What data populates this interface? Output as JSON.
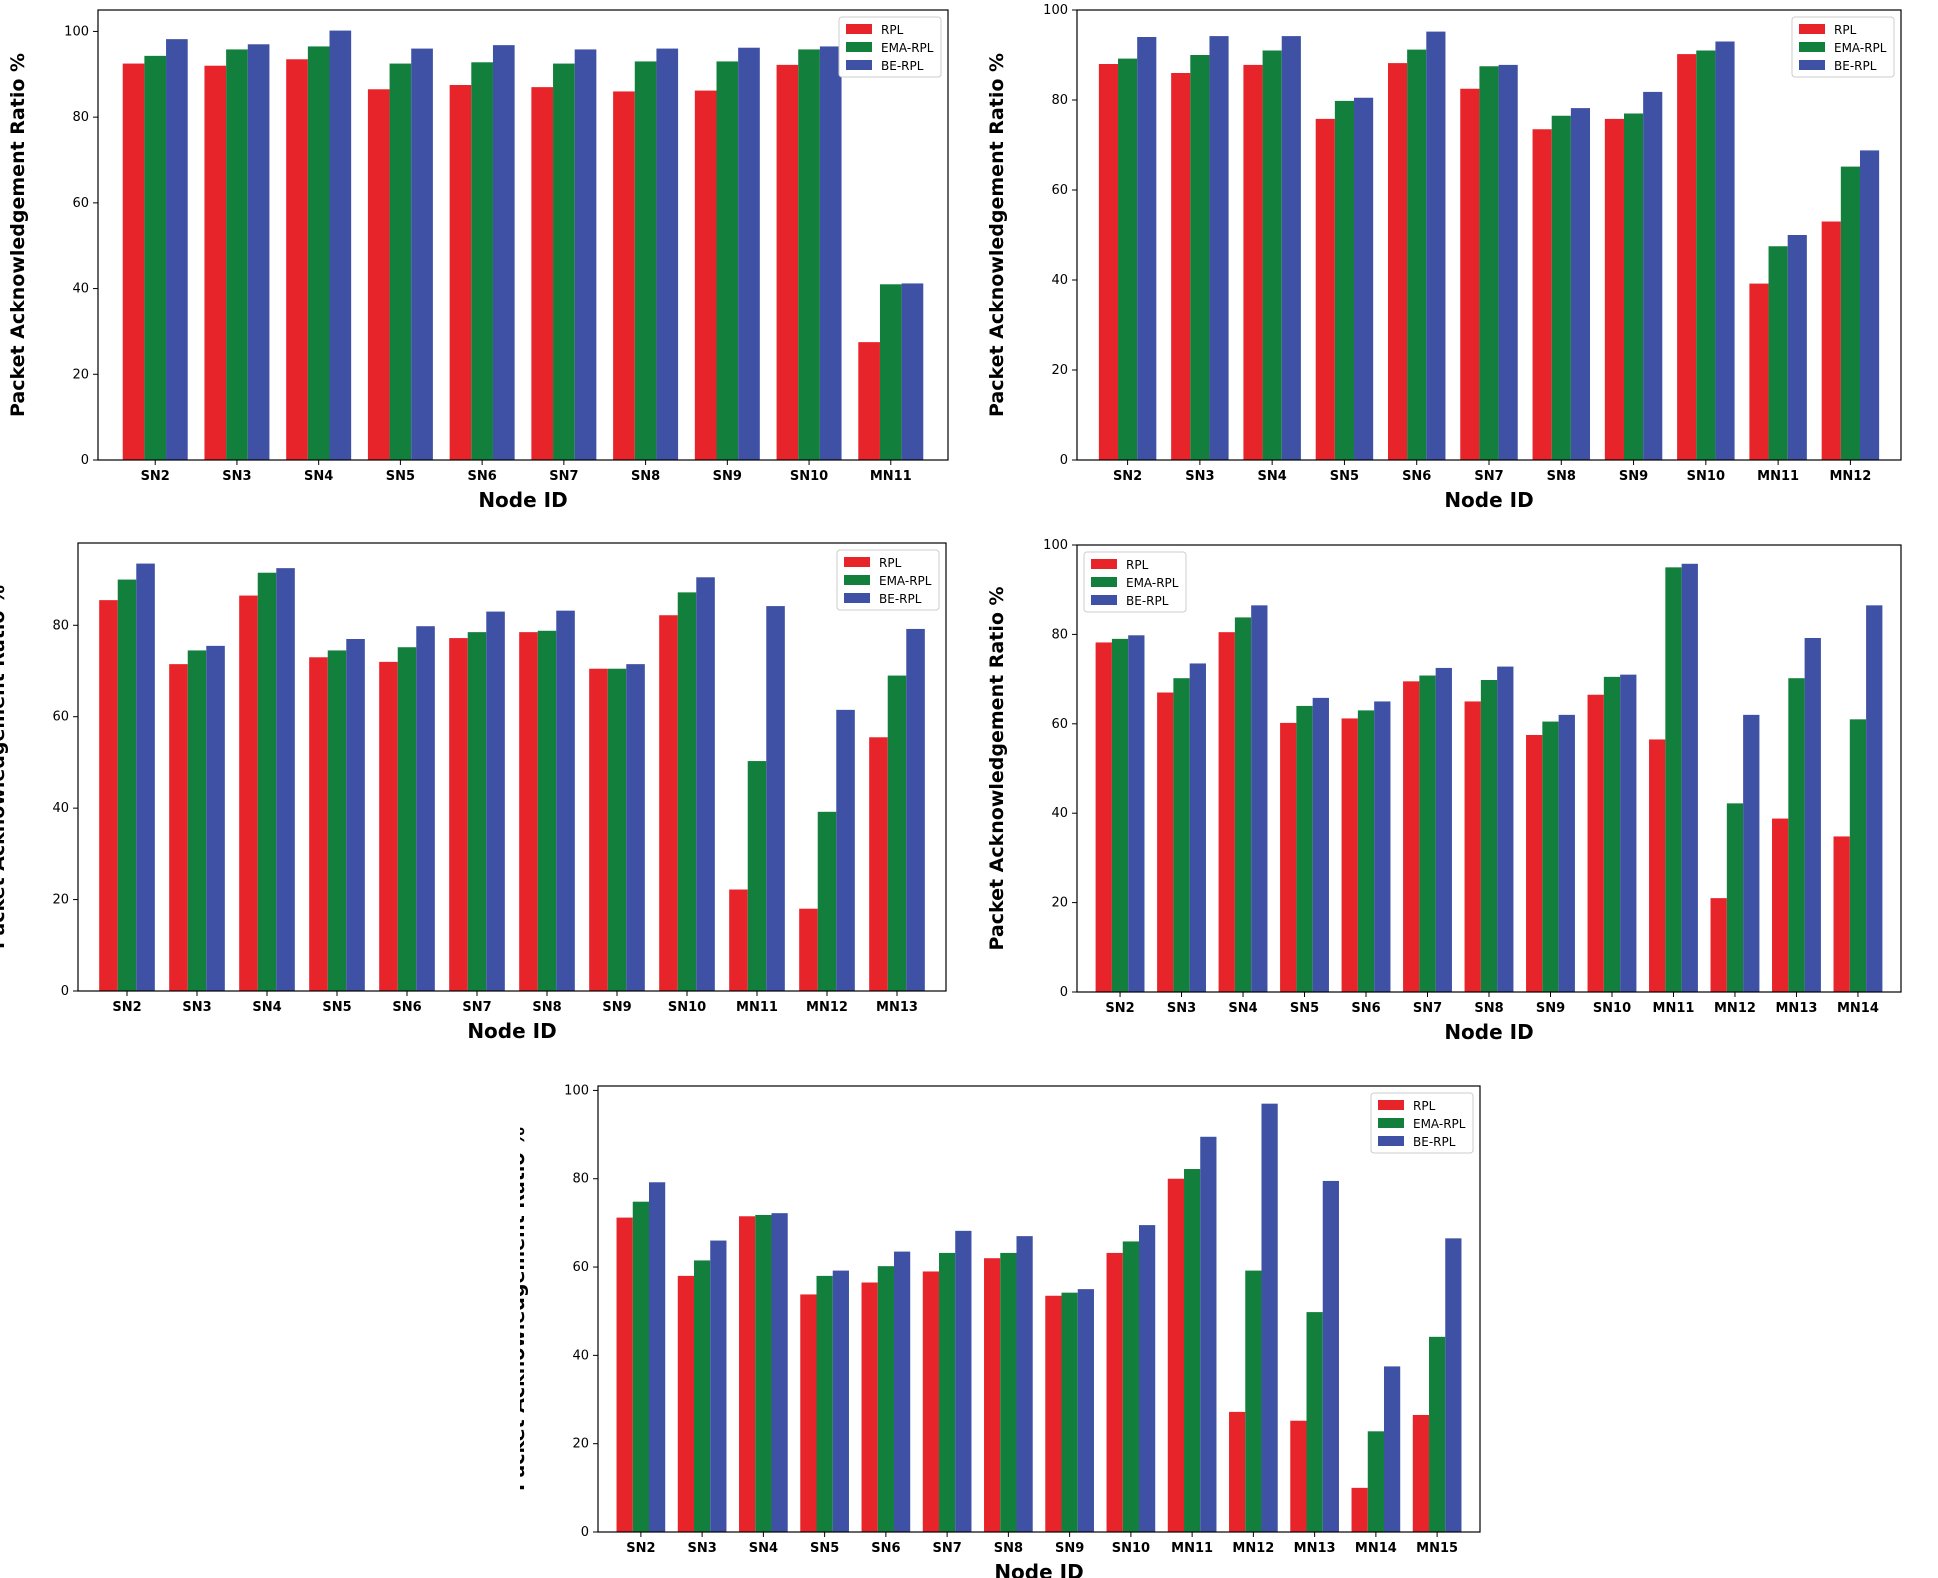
{
  "chart_data": [
    {
      "type": "bar",
      "title": "",
      "xlabel": "Node ID",
      "ylabel": "Packet Acknowledgement Ratio %",
      "ylim": [
        0,
        105
      ],
      "yticks": [
        0,
        20,
        40,
        60,
        80,
        100
      ],
      "legend_position": "top-right",
      "categories": [
        "SN2",
        "SN3",
        "SN4",
        "SN5",
        "SN6",
        "SN7",
        "SN8",
        "SN9",
        "SN10",
        "MN11"
      ],
      "series": [
        {
          "name": "RPL",
          "color": "#e8242b",
          "values": [
            92.5,
            92,
            93.5,
            86.5,
            87.5,
            87,
            86,
            86.2,
            92.2,
            27.5
          ]
        },
        {
          "name": "EMA-RPL",
          "color": "#12803c",
          "values": [
            94.3,
            95.8,
            96.5,
            92.5,
            92.8,
            92.5,
            93,
            93,
            95.8,
            41
          ]
        },
        {
          "name": "BE-RPL",
          "color": "#3f51a5",
          "values": [
            98.2,
            97,
            100.2,
            96,
            96.8,
            95.8,
            96,
            96.2,
            96.5,
            41.2
          ]
        }
      ]
    },
    {
      "type": "bar",
      "title": "",
      "xlabel": "Node ID",
      "ylabel": "Packet Acknowledgement Ratio %",
      "ylim": [
        0,
        100
      ],
      "yticks": [
        0,
        20,
        40,
        60,
        80,
        100
      ],
      "legend_position": "top-right",
      "categories": [
        "SN2",
        "SN3",
        "SN4",
        "SN5",
        "SN6",
        "SN7",
        "SN8",
        "SN9",
        "SN10",
        "MN11",
        "MN12"
      ],
      "series": [
        {
          "name": "RPL",
          "color": "#e8242b",
          "values": [
            88,
            86,
            87.8,
            75.8,
            88.2,
            82.5,
            73.5,
            75.8,
            90.2,
            39.2,
            53
          ]
        },
        {
          "name": "EMA-RPL",
          "color": "#12803c",
          "values": [
            89.2,
            90,
            91,
            79.8,
            91.2,
            87.5,
            76.5,
            77,
            91,
            47.5,
            65.2
          ]
        },
        {
          "name": "BE-RPL",
          "color": "#3f51a5",
          "values": [
            94,
            94.2,
            94.2,
            80.5,
            95.2,
            87.8,
            78.2,
            81.8,
            93,
            50,
            68.8
          ]
        }
      ]
    },
    {
      "type": "bar",
      "title": "",
      "xlabel": "Node ID",
      "ylabel": "Packet Acknowledgement Ratio %",
      "ylim": [
        0,
        98
      ],
      "yticks": [
        0,
        20,
        40,
        60,
        80
      ],
      "legend_position": "top-right",
      "categories": [
        "SN2",
        "SN3",
        "SN4",
        "SN5",
        "SN6",
        "SN7",
        "SN8",
        "SN9",
        "SN10",
        "MN11",
        "MN12",
        "MN13"
      ],
      "series": [
        {
          "name": "RPL",
          "color": "#e8242b",
          "values": [
            85.5,
            71.5,
            86.5,
            73,
            72,
            77.2,
            78.5,
            70.5,
            82.2,
            22.2,
            18,
            55.5
          ]
        },
        {
          "name": "EMA-RPL",
          "color": "#12803c",
          "values": [
            90,
            74.5,
            91.5,
            74.5,
            75.2,
            78.5,
            78.8,
            70.5,
            87.2,
            50.3,
            39.2,
            69
          ]
        },
        {
          "name": "BE-RPL",
          "color": "#3f51a5",
          "values": [
            93.5,
            75.5,
            92.5,
            77,
            79.8,
            83,
            83.2,
            71.5,
            90.5,
            84.2,
            61.5,
            79.2
          ]
        }
      ]
    },
    {
      "type": "bar",
      "title": "",
      "xlabel": "Node ID",
      "ylabel": "Packet Acknowledgement Ratio %",
      "ylim": [
        0,
        100
      ],
      "yticks": [
        0,
        20,
        40,
        60,
        80,
        100
      ],
      "legend_position": "top-left",
      "categories": [
        "SN2",
        "SN3",
        "SN4",
        "SN5",
        "SN6",
        "SN7",
        "SN8",
        "SN9",
        "SN10",
        "MN11",
        "MN12",
        "MN13",
        "MN14"
      ],
      "series": [
        {
          "name": "RPL",
          "color": "#e8242b",
          "values": [
            78.2,
            67,
            80.5,
            60.2,
            61.2,
            69.5,
            65,
            57.5,
            66.5,
            56.5,
            21,
            38.8,
            34.8
          ]
        },
        {
          "name": "EMA-RPL",
          "color": "#12803c",
          "values": [
            79,
            70.2,
            83.8,
            64,
            63,
            70.8,
            69.8,
            60.5,
            70.5,
            95,
            42.2,
            70.2,
            61
          ]
        },
        {
          "name": "BE-RPL",
          "color": "#3f51a5",
          "values": [
            79.8,
            73.5,
            86.5,
            65.8,
            65,
            72.5,
            72.8,
            62,
            71,
            95.8,
            62,
            79.2,
            86.5
          ]
        }
      ]
    },
    {
      "type": "bar",
      "title": "",
      "xlabel": "Node ID",
      "ylabel": "Packet Acknowledgement Ratio %",
      "ylim": [
        0,
        101
      ],
      "yticks": [
        0,
        20,
        40,
        60,
        80,
        100
      ],
      "legend_position": "top-right",
      "categories": [
        "SN2",
        "SN3",
        "SN4",
        "SN5",
        "SN6",
        "SN7",
        "SN8",
        "SN9",
        "SN10",
        "MN11",
        "MN12",
        "MN13",
        "MN14",
        "MN15"
      ],
      "series": [
        {
          "name": "RPL",
          "color": "#e8242b",
          "values": [
            71.2,
            58,
            71.5,
            53.8,
            56.5,
            59,
            62,
            53.5,
            63.2,
            80,
            27.2,
            25.2,
            10,
            26.5
          ]
        },
        {
          "name": "EMA-RPL",
          "color": "#12803c",
          "values": [
            74.8,
            61.5,
            71.8,
            58,
            60.2,
            63.2,
            63.2,
            54.2,
            65.8,
            82.2,
            59.2,
            49.8,
            22.8,
            44.2
          ]
        },
        {
          "name": "BE-RPL",
          "color": "#3f51a5",
          "values": [
            79.2,
            66,
            72.2,
            59.2,
            63.5,
            68.2,
            67,
            55,
            69.5,
            89.5,
            97,
            79.5,
            37.5,
            66.5
          ]
        }
      ]
    }
  ]
}
